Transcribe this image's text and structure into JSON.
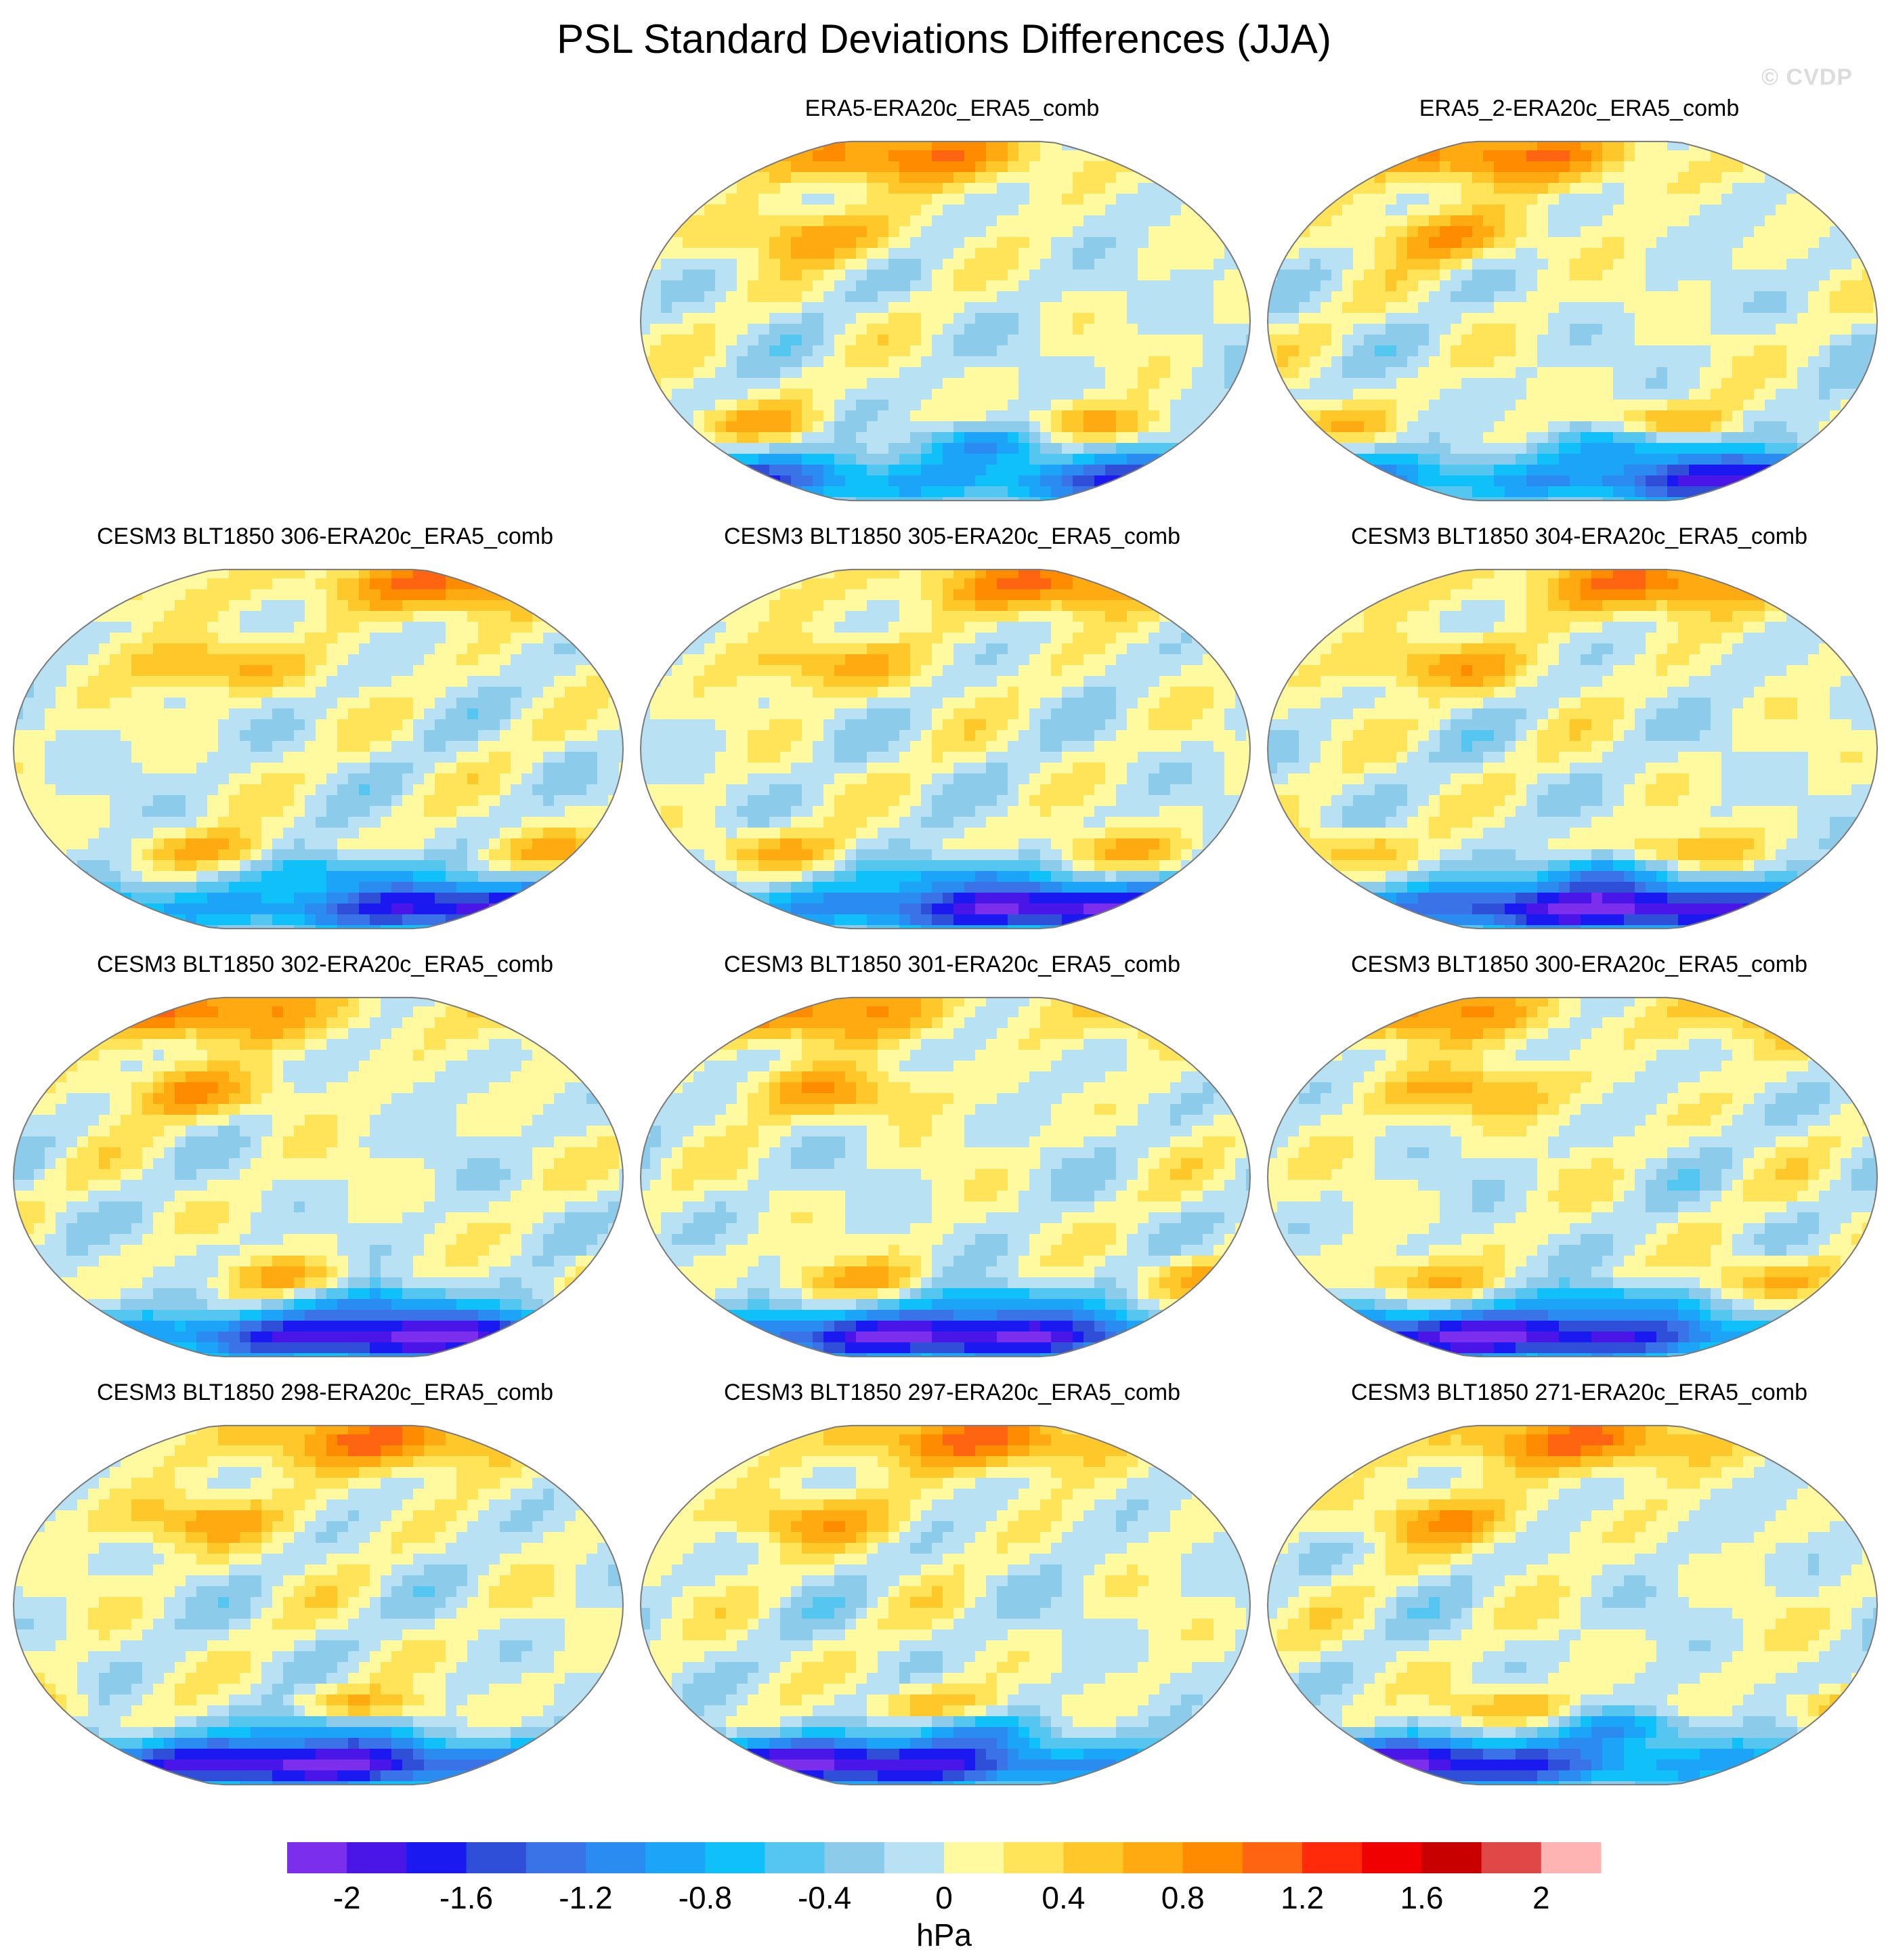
{
  "title": "PSL Standard Deviations Differences (JJA)",
  "watermark": "© CVDP",
  "panels": [
    {
      "id": "era5",
      "title": "ERA5-ERA20c_ERA5_comb",
      "row": 0,
      "col": 1,
      "seed": 11
    },
    {
      "id": "era5_2",
      "title": "ERA5_2-ERA20c_ERA5_comb",
      "row": 0,
      "col": 2,
      "seed": 12
    },
    {
      "id": "b306",
      "title": "CESM3 BLT1850 306-ERA20c_ERA5_comb",
      "row": 1,
      "col": 0,
      "seed": 21
    },
    {
      "id": "b305",
      "title": "CESM3 BLT1850 305-ERA20c_ERA5_comb",
      "row": 1,
      "col": 1,
      "seed": 22
    },
    {
      "id": "b304",
      "title": "CESM3 BLT1850 304-ERA20c_ERA5_comb",
      "row": 1,
      "col": 2,
      "seed": 23
    },
    {
      "id": "b302",
      "title": "CESM3 BLT1850 302-ERA20c_ERA5_comb",
      "row": 2,
      "col": 0,
      "seed": 31
    },
    {
      "id": "b301",
      "title": "CESM3 BLT1850 301-ERA20c_ERA5_comb",
      "row": 2,
      "col": 1,
      "seed": 32
    },
    {
      "id": "b300",
      "title": "CESM3 BLT1850 300-ERA20c_ERA5_comb",
      "row": 2,
      "col": 2,
      "seed": 33
    },
    {
      "id": "b298",
      "title": "CESM3 BLT1850 298-ERA20c_ERA5_comb",
      "row": 3,
      "col": 0,
      "seed": 41
    },
    {
      "id": "b297",
      "title": "CESM3 BLT1850 297-ERA20c_ERA5_comb",
      "row": 3,
      "col": 1,
      "seed": 42
    },
    {
      "id": "b271",
      "title": "CESM3 BLT1850 271-ERA20c_ERA5_comb",
      "row": 3,
      "col": 2,
      "seed": 43
    }
  ],
  "chart_data": {
    "type": "heatmap",
    "title": "PSL Standard Deviations Differences (JJA)",
    "projection": "Robinson (Pacific-centered)",
    "units": "hPa",
    "levels": [
      -2.2,
      -2.0,
      -1.8,
      -1.6,
      -1.4,
      -1.2,
      -1.0,
      -0.8,
      -0.6,
      -0.4,
      -0.2,
      0,
      0.2,
      0.4,
      0.6,
      0.8,
      1.0,
      1.2,
      1.4,
      1.6,
      1.8,
      2.0,
      2.2
    ],
    "colors": [
      "#7b2fec",
      "#4a16e8",
      "#1a1af0",
      "#2f4fd8",
      "#3a72e8",
      "#2a8cf0",
      "#1ca4f8",
      "#10c0f8",
      "#54c6f0",
      "#8ccbea",
      "#b8e2f4",
      "#fffaa0",
      "#ffe45a",
      "#ffc82a",
      "#ffaa10",
      "#ff8c00",
      "#ff6410",
      "#ff2a0a",
      "#f00000",
      "#c80000",
      "#e04848",
      "#ffb4b4"
    ],
    "tick_labels": [
      "-2",
      "-1.6",
      "-1.2",
      "-0.8",
      "-0.4",
      "0",
      "0.4",
      "0.8",
      "1.2",
      "1.6",
      "2"
    ],
    "range": [
      -2.2,
      2.2
    ],
    "features": {
      "north_pacific_jet_region": "positive (0.4 to 1.0)",
      "arctic_north_eurasia": "positive (0.4 to 1.2)",
      "southern_ocean_high_latitudes": "negative (-1.0 to -2.2)",
      "tropics": "near zero (-0.2 to 0.2)"
    }
  }
}
